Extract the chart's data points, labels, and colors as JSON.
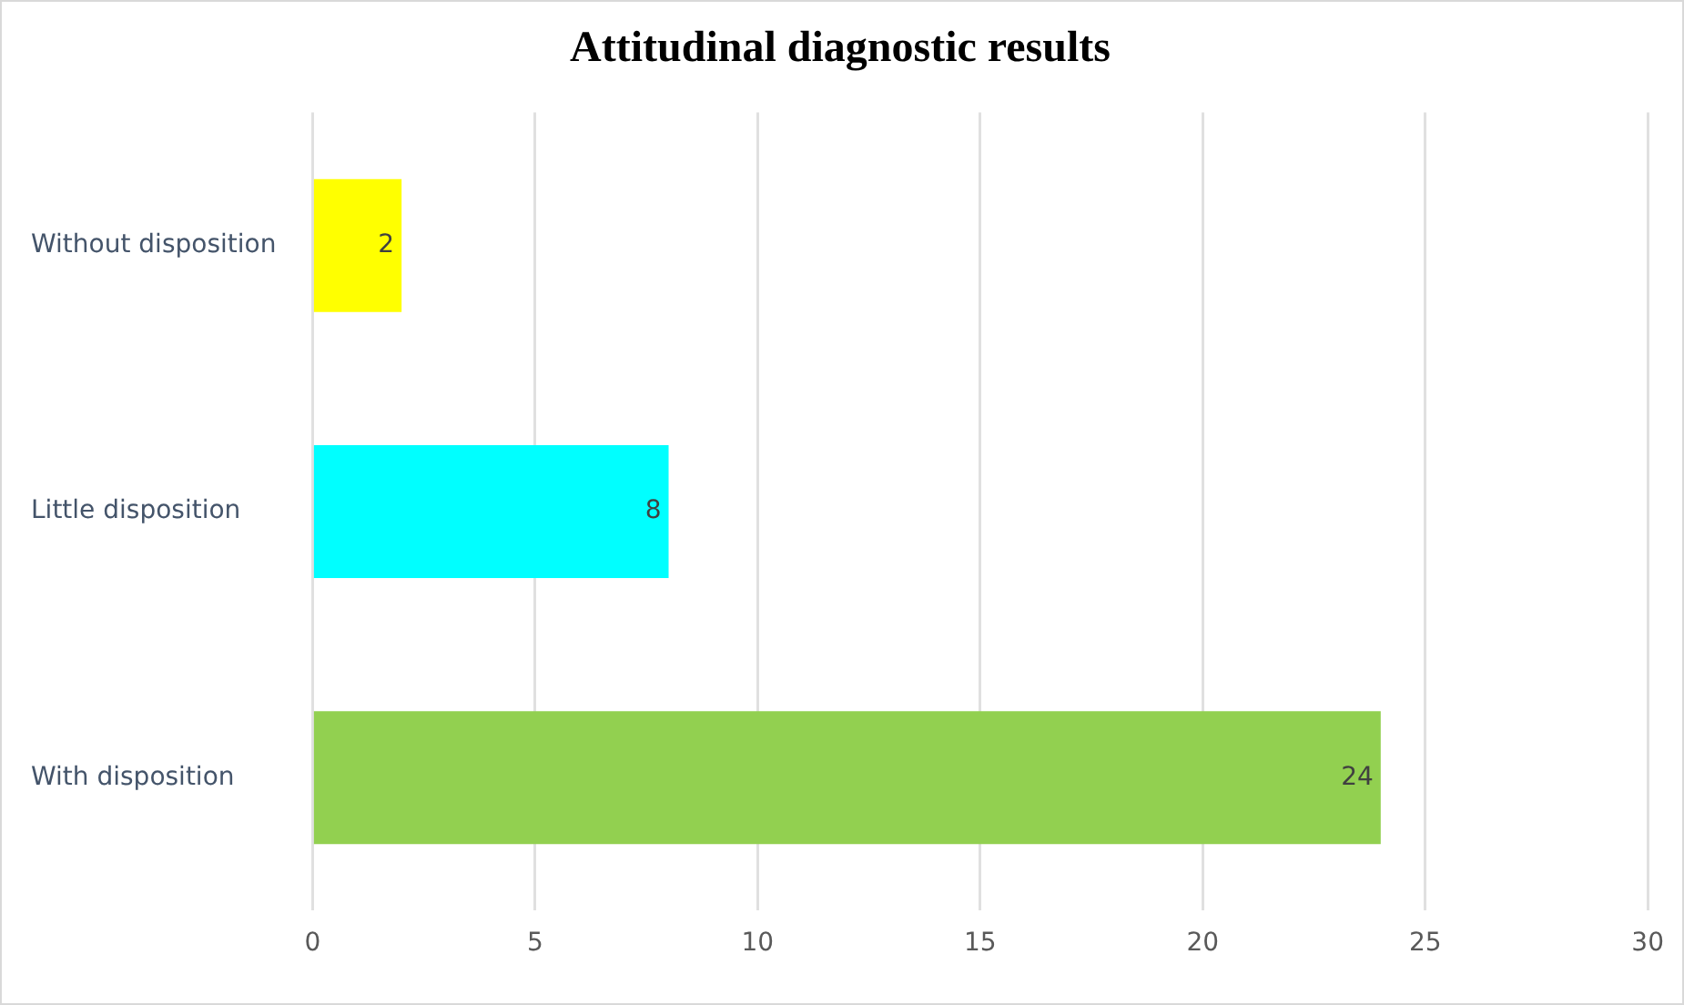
{
  "chart_data": {
    "type": "bar",
    "orientation": "horizontal",
    "title": "Attitudinal diagnostic results",
    "categories": [
      "Without disposition",
      "Little disposition",
      "With disposition"
    ],
    "values": [
      2,
      8,
      24
    ],
    "colors": [
      "#ffff00",
      "#00ffff",
      "#92d050"
    ],
    "xlim": [
      0,
      30
    ],
    "xticks": [
      0,
      5,
      10,
      15,
      20,
      25,
      30
    ],
    "grid": "x",
    "legend": false,
    "data_labels": true
  }
}
